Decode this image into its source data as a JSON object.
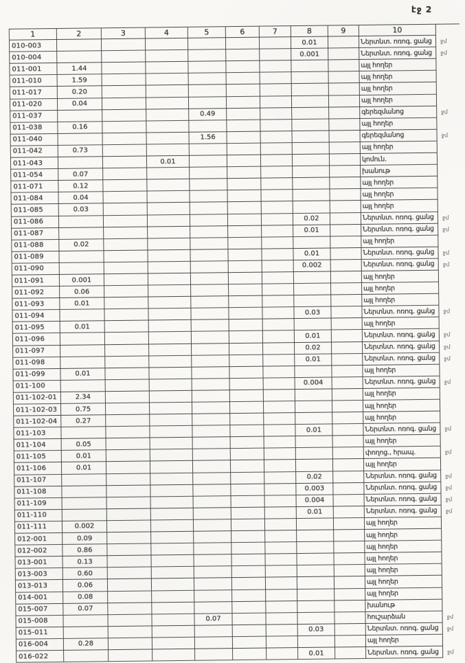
{
  "page": {
    "label": "էջ 2"
  },
  "colors": {
    "paper": "#f9f8f5",
    "ink": "#3a3a3a",
    "border": "#4e4e4e"
  },
  "table": {
    "headers": [
      "1",
      "2",
      "3",
      "4",
      "5",
      "6",
      "7",
      "8",
      "9",
      "10"
    ],
    "rows": [
      {
        "cells": [
          "010-003",
          "",
          "",
          "",
          "",
          "",
          "",
          "0.01",
          "",
          "Ներտնտ. ոռոգ. ցանց"
        ],
        "note": "ջմ"
      },
      {
        "cells": [
          "010-004",
          "",
          "",
          "",
          "",
          "",
          "",
          "0.001",
          "",
          "Ներտնտ. ոռոգ. ցանց"
        ],
        "note": "ջմ"
      },
      {
        "cells": [
          "011-001",
          "1.44",
          "",
          "",
          "",
          "",
          "",
          "",
          "",
          "այլ հողեր"
        ],
        "note": ""
      },
      {
        "cells": [
          "011-010",
          "1.59",
          "",
          "",
          "",
          "",
          "",
          "",
          "",
          "այլ հողեր"
        ],
        "note": ""
      },
      {
        "cells": [
          "011-017",
          "0.20",
          "",
          "",
          "",
          "",
          "",
          "",
          "",
          "այլ հողեր"
        ],
        "note": ""
      },
      {
        "cells": [
          "011-020",
          "0.04",
          "",
          "",
          "",
          "",
          "",
          "",
          "",
          "այլ հողեր"
        ],
        "note": ""
      },
      {
        "cells": [
          "011-037",
          "",
          "",
          "",
          "0.49",
          "",
          "",
          "",
          "",
          "գերեզմանոց"
        ],
        "note": "ջմ"
      },
      {
        "cells": [
          "011-038",
          "0.16",
          "",
          "",
          "",
          "",
          "",
          "",
          "",
          "այլ հողեր"
        ],
        "note": ""
      },
      {
        "cells": [
          "011-040",
          "",
          "",
          "",
          "1.56",
          "",
          "",
          "",
          "",
          "գերեզմանոց"
        ],
        "note": "ջմ"
      },
      {
        "cells": [
          "011-042",
          "0.73",
          "",
          "",
          "",
          "",
          "",
          "",
          "",
          "այլ հողեր"
        ],
        "note": ""
      },
      {
        "cells": [
          "011-043",
          "",
          "",
          "0.01",
          "",
          "",
          "",
          "",
          "",
          "կոմուն."
        ],
        "note": ""
      },
      {
        "cells": [
          "011-054",
          "0.07",
          "",
          "",
          "",
          "",
          "",
          "",
          "",
          "խանութ"
        ],
        "note": ""
      },
      {
        "cells": [
          "011-071",
          "0.12",
          "",
          "",
          "",
          "",
          "",
          "",
          "",
          "այլ հողեր"
        ],
        "note": ""
      },
      {
        "cells": [
          "011-084",
          "0.04",
          "",
          "",
          "",
          "",
          "",
          "",
          "",
          "այլ հողեր"
        ],
        "note": ""
      },
      {
        "cells": [
          "011-085",
          "0.03",
          "",
          "",
          "",
          "",
          "",
          "",
          "",
          "այլ հողեր"
        ],
        "note": ""
      },
      {
        "cells": [
          "011-086",
          "",
          "",
          "",
          "",
          "",
          "",
          "0.02",
          "",
          "Ներտնտ. ոռոգ. ցանց"
        ],
        "note": "ջմ"
      },
      {
        "cells": [
          "011-087",
          "",
          "",
          "",
          "",
          "",
          "",
          "0.01",
          "",
          "Ներտնտ. ոռոգ. ցանց"
        ],
        "note": "ջմ"
      },
      {
        "cells": [
          "011-088",
          "0.02",
          "",
          "",
          "",
          "",
          "",
          "",
          "",
          "այլ հողեր"
        ],
        "note": ""
      },
      {
        "cells": [
          "011-089",
          "",
          "",
          "",
          "",
          "",
          "",
          "0.01",
          "",
          "Ներտնտ. ոռոգ. ցանց"
        ],
        "note": "ջմ"
      },
      {
        "cells": [
          "011-090",
          "",
          "",
          "",
          "",
          "",
          "",
          "0.002",
          "",
          "Ներտնտ. ոռոգ. ցանց"
        ],
        "note": "ջմ"
      },
      {
        "cells": [
          "011-091",
          "0.001",
          "",
          "",
          "",
          "",
          "",
          "",
          "",
          "այլ հողեր"
        ],
        "note": ""
      },
      {
        "cells": [
          "011-092",
          "0.06",
          "",
          "",
          "",
          "",
          "",
          "",
          "",
          "այլ հողեր"
        ],
        "note": ""
      },
      {
        "cells": [
          "011-093",
          "0.01",
          "",
          "",
          "",
          "",
          "",
          "",
          "",
          "այլ հողեր"
        ],
        "note": ""
      },
      {
        "cells": [
          "011-094",
          "",
          "",
          "",
          "",
          "",
          "",
          "0.03",
          "",
          "Ներտնտ. ոռոգ. ցանց"
        ],
        "note": "ջմ"
      },
      {
        "cells": [
          "011-095",
          "0.01",
          "",
          "",
          "",
          "",
          "",
          "",
          "",
          "այլ հողեր"
        ],
        "note": ""
      },
      {
        "cells": [
          "011-096",
          "",
          "",
          "",
          "",
          "",
          "",
          "0.01",
          "",
          "Ներտնտ. ոռոգ. ցանց"
        ],
        "note": "ջմ"
      },
      {
        "cells": [
          "011-097",
          "",
          "",
          "",
          "",
          "",
          "",
          "0.02",
          "",
          "Ներտնտ. ոռոգ. ցանց"
        ],
        "note": "ջմ"
      },
      {
        "cells": [
          "011-098",
          "",
          "",
          "",
          "",
          "",
          "",
          "0.01",
          "",
          "Ներտնտ. ոռոգ. ցանց"
        ],
        "note": "ջմ"
      },
      {
        "cells": [
          "011-099",
          "0.01",
          "",
          "",
          "",
          "",
          "",
          "",
          "",
          "այլ հողեր"
        ],
        "note": ""
      },
      {
        "cells": [
          "011-100",
          "",
          "",
          "",
          "",
          "",
          "",
          "0.004",
          "",
          "Ներտնտ. ոռոգ. ցանց"
        ],
        "note": "ջմ"
      },
      {
        "cells": [
          "011-102-01",
          "2.34",
          "",
          "",
          "",
          "",
          "",
          "",
          "",
          "այլ հողեր"
        ],
        "note": ""
      },
      {
        "cells": [
          "011-102-03",
          "0.75",
          "",
          "",
          "",
          "",
          "",
          "",
          "",
          "այլ հողեր"
        ],
        "note": ""
      },
      {
        "cells": [
          "011-102-04",
          "0.27",
          "",
          "",
          "",
          "",
          "",
          "",
          "",
          "այլ հողեր"
        ],
        "note": ""
      },
      {
        "cells": [
          "011-103",
          "",
          "",
          "",
          "",
          "",
          "",
          "0.01",
          "",
          "Ներտնտ. ոռոգ. ցանց"
        ],
        "note": "ջմ"
      },
      {
        "cells": [
          "011-104",
          "0.05",
          "",
          "",
          "",
          "",
          "",
          "",
          "",
          "այլ հողեր"
        ],
        "note": ""
      },
      {
        "cells": [
          "011-105",
          "0.01",
          "",
          "",
          "",
          "",
          "",
          "",
          "",
          "փողոց., հրապ."
        ],
        "note": "ջմ"
      },
      {
        "cells": [
          "011-106",
          "0.01",
          "",
          "",
          "",
          "",
          "",
          "",
          "",
          "այլ հողեր"
        ],
        "note": ""
      },
      {
        "cells": [
          "011-107",
          "",
          "",
          "",
          "",
          "",
          "",
          "0.02",
          "",
          "Ներտնտ. ոռոգ. ցանց"
        ],
        "note": "ջմ"
      },
      {
        "cells": [
          "011-108",
          "",
          "",
          "",
          "",
          "",
          "",
          "0.003",
          "",
          "Ներտնտ. ոռոգ. ցանց"
        ],
        "note": "ջմ"
      },
      {
        "cells": [
          "011-109",
          "",
          "",
          "",
          "",
          "",
          "",
          "0.004",
          "",
          "Ներտնտ. ոռոգ. ցանց"
        ],
        "note": "ջմ"
      },
      {
        "cells": [
          "011-110",
          "",
          "",
          "",
          "",
          "",
          "",
          "0.01",
          "",
          "Ներտնտ. ոռոգ. ցանց"
        ],
        "note": "ջմ"
      },
      {
        "cells": [
          "011-111",
          "0.002",
          "",
          "",
          "",
          "",
          "",
          "",
          "",
          "այլ հողեր"
        ],
        "note": ""
      },
      {
        "cells": [
          "012-001",
          "0.09",
          "",
          "",
          "",
          "",
          "",
          "",
          "",
          "այլ հողեր"
        ],
        "note": ""
      },
      {
        "cells": [
          "012-002",
          "0.86",
          "",
          "",
          "",
          "",
          "",
          "",
          "",
          "այլ հողեր"
        ],
        "note": ""
      },
      {
        "cells": [
          "013-001",
          "0.13",
          "",
          "",
          "",
          "",
          "",
          "",
          "",
          "այլ հողեր"
        ],
        "note": ""
      },
      {
        "cells": [
          "013-003",
          "0.60",
          "",
          "",
          "",
          "",
          "",
          "",
          "",
          "այլ հողեր"
        ],
        "note": ""
      },
      {
        "cells": [
          "013-013",
          "0.06",
          "",
          "",
          "",
          "",
          "",
          "",
          "",
          "այլ հողեր"
        ],
        "note": ""
      },
      {
        "cells": [
          "014-001",
          "0.08",
          "",
          "",
          "",
          "",
          "",
          "",
          "",
          "այլ հողեր"
        ],
        "note": ""
      },
      {
        "cells": [
          "015-007",
          "0.07",
          "",
          "",
          "",
          "",
          "",
          "",
          "",
          "խանութ"
        ],
        "note": ""
      },
      {
        "cells": [
          "015-008",
          "",
          "",
          "",
          "0.07",
          "",
          "",
          "",
          "",
          "հուշարձան"
        ],
        "note": "ջմ"
      },
      {
        "cells": [
          "015-011",
          "",
          "",
          "",
          "",
          "",
          "",
          "0.03",
          "",
          "Ներտնտ. ոռոգ. ցանց"
        ],
        "note": "ջմ"
      },
      {
        "cells": [
          "016-004",
          "0.28",
          "",
          "",
          "",
          "",
          "",
          "",
          "",
          "այլ հողեր"
        ],
        "note": ""
      },
      {
        "cells": [
          "016-022",
          "",
          "",
          "",
          "",
          "",
          "",
          "0.01",
          "",
          "Ներտնտ. ոռոգ. ցանց"
        ],
        "note": "ջմ"
      }
    ]
  }
}
